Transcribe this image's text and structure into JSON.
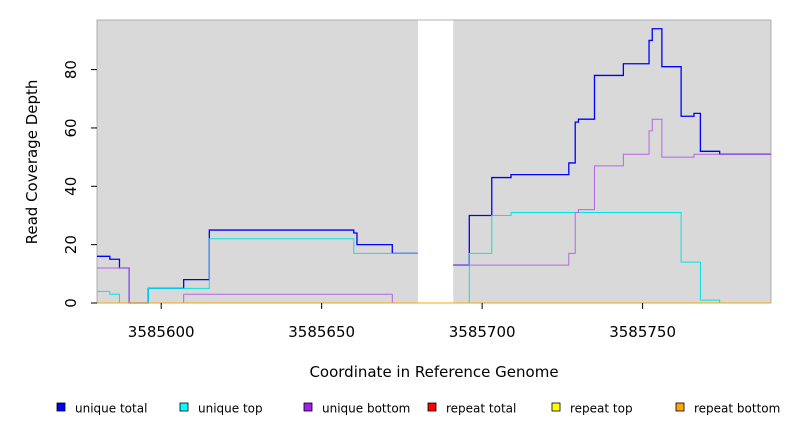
{
  "chart_data": {
    "type": "line",
    "title": "",
    "xlabel": "Coordinate in Reference Genome",
    "ylabel": "Read Coverage Depth",
    "xlim": [
      3585580,
      3585790
    ],
    "ylim": [
      0,
      97
    ],
    "x_ticks": [
      3585600,
      3585650,
      3585700,
      3585750
    ],
    "y_ticks": [
      0,
      20,
      40,
      60,
      80
    ],
    "grid": false,
    "background_color": "#d9d9d9",
    "gap_region": [
      3585680,
      3585691
    ],
    "legend_position": "bottom",
    "series": [
      {
        "name": "unique total",
        "color": "#0000ff",
        "points": [
          [
            3585580,
            16
          ],
          [
            3585584,
            16
          ],
          [
            3585584,
            15
          ],
          [
            3585587,
            15
          ],
          [
            3585587,
            12
          ],
          [
            3585590,
            12
          ],
          [
            3585590,
            0
          ],
          [
            3585596,
            0
          ],
          [
            3585596,
            5
          ],
          [
            3585607,
            5
          ],
          [
            3585607,
            8
          ],
          [
            3585615,
            8
          ],
          [
            3585615,
            25
          ],
          [
            3585660,
            25
          ],
          [
            3585660,
            24
          ],
          [
            3585661,
            24
          ],
          [
            3585661,
            20
          ],
          [
            3585672,
            20
          ],
          [
            3585672,
            17
          ],
          [
            3585680,
            17
          ]
        ]
      },
      {
        "name": "unique total",
        "color": "#0000ff",
        "points": [
          [
            3585691,
            13
          ],
          [
            3585696,
            13
          ],
          [
            3585696,
            30
          ],
          [
            3585703,
            30
          ],
          [
            3585703,
            43
          ],
          [
            3585709,
            43
          ],
          [
            3585709,
            44
          ],
          [
            3585727,
            44
          ],
          [
            3585727,
            48
          ],
          [
            3585729,
            48
          ],
          [
            3585729,
            62
          ],
          [
            3585730,
            62
          ],
          [
            3585730,
            63
          ],
          [
            3585735,
            63
          ],
          [
            3585735,
            78
          ],
          [
            3585744,
            78
          ],
          [
            3585744,
            82
          ],
          [
            3585752,
            82
          ],
          [
            3585752,
            90
          ],
          [
            3585753,
            90
          ],
          [
            3585753,
            94
          ],
          [
            3585756,
            94
          ],
          [
            3585756,
            81
          ],
          [
            3585762,
            81
          ],
          [
            3585762,
            64
          ],
          [
            3585766,
            64
          ],
          [
            3585766,
            65
          ],
          [
            3585768,
            65
          ],
          [
            3585768,
            52
          ],
          [
            3585774,
            52
          ],
          [
            3585774,
            51
          ],
          [
            3585790,
            51
          ]
        ]
      },
      {
        "name": "unique top",
        "color": "#00e5e5",
        "points": [
          [
            3585580,
            4
          ],
          [
            3585584,
            4
          ],
          [
            3585584,
            3
          ],
          [
            3585587,
            3
          ],
          [
            3585587,
            0
          ],
          [
            3585596,
            0
          ],
          [
            3585596,
            5
          ],
          [
            3585615,
            5
          ],
          [
            3585615,
            22
          ],
          [
            3585660,
            22
          ],
          [
            3585660,
            17
          ],
          [
            3585672,
            17
          ],
          [
            3585672,
            17
          ],
          [
            3585680,
            17
          ]
        ]
      },
      {
        "name": "unique top",
        "color": "#00e5e5",
        "points": [
          [
            3585691,
            0
          ],
          [
            3585696,
            0
          ],
          [
            3585696,
            17
          ],
          [
            3585703,
            17
          ],
          [
            3585703,
            30
          ],
          [
            3585709,
            30
          ],
          [
            3585709,
            31
          ],
          [
            3585762,
            31
          ],
          [
            3585762,
            14
          ],
          [
            3585768,
            14
          ],
          [
            3585768,
            1
          ],
          [
            3585774,
            1
          ],
          [
            3585774,
            0
          ],
          [
            3585790,
            0
          ]
        ]
      },
      {
        "name": "unique bottom",
        "color": "#b366e6",
        "points": [
          [
            3585580,
            12
          ],
          [
            3585590,
            12
          ],
          [
            3585590,
            0
          ],
          [
            3585607,
            0
          ],
          [
            3585607,
            3
          ],
          [
            3585672,
            3
          ],
          [
            3585672,
            0
          ],
          [
            3585680,
            0
          ]
        ]
      },
      {
        "name": "unique bottom",
        "color": "#b366e6",
        "points": [
          [
            3585691,
            13
          ],
          [
            3585727,
            13
          ],
          [
            3585727,
            17
          ],
          [
            3585729,
            17
          ],
          [
            3585729,
            31
          ],
          [
            3585730,
            31
          ],
          [
            3585730,
            32
          ],
          [
            3585735,
            32
          ],
          [
            3585735,
            47
          ],
          [
            3585744,
            47
          ],
          [
            3585744,
            51
          ],
          [
            3585752,
            51
          ],
          [
            3585752,
            59
          ],
          [
            3585753,
            59
          ],
          [
            3585753,
            63
          ],
          [
            3585756,
            63
          ],
          [
            3585756,
            50
          ],
          [
            3585766,
            50
          ],
          [
            3585766,
            51
          ],
          [
            3585790,
            51
          ]
        ]
      },
      {
        "name": "repeat total",
        "color": "#ff0000",
        "points": [
          [
            3585580,
            0
          ],
          [
            3585680,
            0
          ]
        ]
      },
      {
        "name": "repeat top",
        "color": "#ffff00",
        "points": [
          [
            3585580,
            0
          ],
          [
            3585680,
            0
          ]
        ]
      },
      {
        "name": "repeat bottom",
        "color": "#ffa500",
        "points": [
          [
            3585580,
            0
          ],
          [
            3585680,
            0
          ],
          [
            3585691,
            0
          ],
          [
            3585790,
            0
          ]
        ]
      }
    ],
    "legend": [
      {
        "label": "unique total",
        "color": "#0000ff"
      },
      {
        "label": "unique top",
        "color": "#00ffff"
      },
      {
        "label": "unique bottom",
        "color": "#a020f0"
      },
      {
        "label": "repeat total",
        "color": "#ff0000"
      },
      {
        "label": "repeat top",
        "color": "#ffff00"
      },
      {
        "label": "repeat bottom",
        "color": "#ffa500"
      }
    ]
  }
}
